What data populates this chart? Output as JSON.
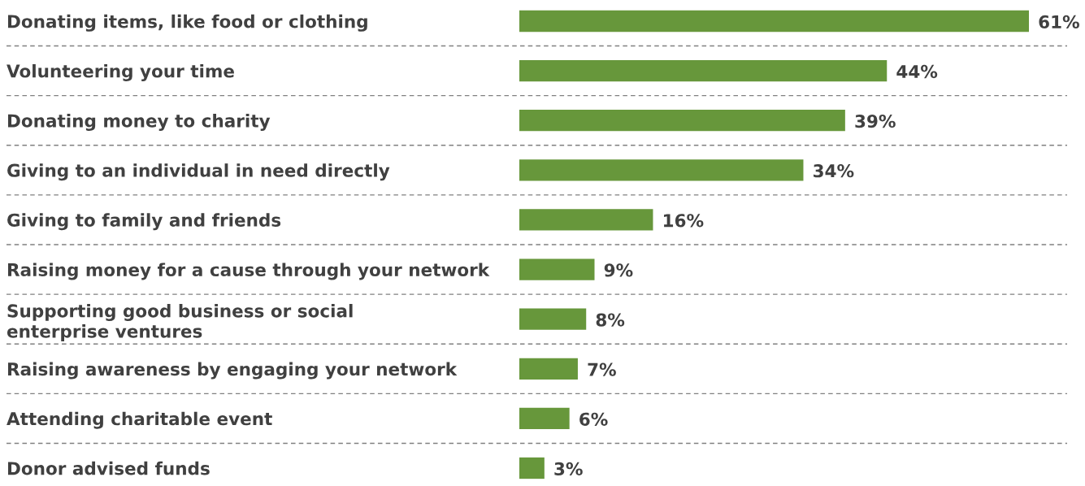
{
  "chart_data": {
    "type": "bar",
    "orientation": "horizontal",
    "categories": [
      "Donating items, like food or clothing",
      "Volunteering your time",
      "Donating money to charity",
      "Giving to an individual in need directly",
      "Giving to family and friends",
      "Raising money for a cause through your network",
      "Supporting good business or social\nenterprise ventures",
      "Raising awareness by engaging your network",
      "Attending charitable event",
      "Donor advised funds"
    ],
    "values": [
      61,
      44,
      39,
      34,
      16,
      9,
      8,
      7,
      6,
      3
    ],
    "value_labels": [
      "61%",
      "44%",
      "39%",
      "34%",
      "16%",
      "9%",
      "8%",
      "7%",
      "6%",
      "3%"
    ],
    "color": "#67973b",
    "grid": "y"
  }
}
